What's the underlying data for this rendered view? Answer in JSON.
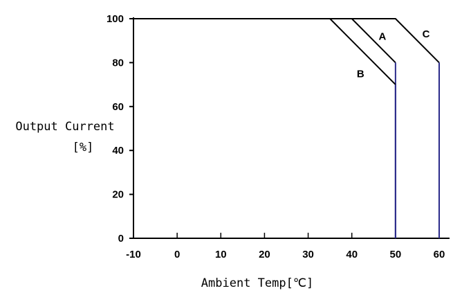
{
  "chart_data": {
    "type": "line",
    "xlabel": "Ambient Temp[℃]",
    "ylabel": [
      "Output Current",
      "[%]"
    ],
    "xlim": [
      -10,
      60
    ],
    "ylim": [
      0,
      100
    ],
    "xticks": [
      -10,
      0,
      10,
      20,
      30,
      40,
      50,
      60
    ],
    "yticks": [
      0,
      20,
      40,
      60,
      80,
      100
    ],
    "grid": false,
    "series": [
      {
        "name": "A",
        "points": [
          [
            -10,
            100
          ],
          [
            40,
            100
          ],
          [
            50,
            80
          ],
          [
            50,
            0
          ]
        ]
      },
      {
        "name": "B",
        "points": [
          [
            -10,
            100
          ],
          [
            35,
            100
          ],
          [
            50,
            70
          ],
          [
            50,
            0
          ]
        ]
      },
      {
        "name": "C",
        "points": [
          [
            -10,
            100
          ],
          [
            50,
            100
          ],
          [
            60,
            80
          ],
          [
            60,
            0
          ]
        ]
      }
    ],
    "series_label_pos": {
      "A": [
        47,
        92
      ],
      "B": [
        42,
        75
      ],
      "C": [
        57,
        93
      ]
    },
    "series_colors": {
      "A": "#000000",
      "B": "#000000",
      "C": "#000000"
    },
    "vertical_line_color": "#2a2a8a"
  }
}
